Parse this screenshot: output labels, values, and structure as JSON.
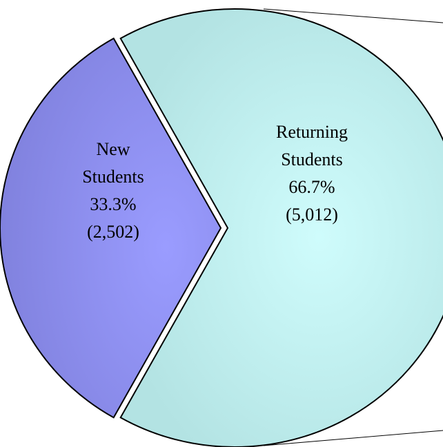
{
  "chart_data": {
    "type": "pie",
    "title": "",
    "slices": [
      {
        "name_lines": [
          "Returning",
          "Students"
        ],
        "percent_label": "66.7%",
        "count_label": "(5,012)",
        "value": 5012,
        "percent": 66.7,
        "color": "#c4f0f0"
      },
      {
        "name_lines": [
          "New",
          "Students"
        ],
        "percent_label": "33.3%",
        "count_label": "(2,502)",
        "value": 2502,
        "percent": 33.3,
        "color": "#8c8ef0"
      }
    ],
    "legend": "none"
  }
}
